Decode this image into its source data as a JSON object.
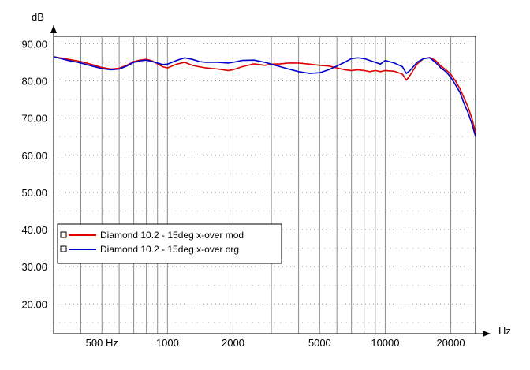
{
  "chart_data": {
    "type": "line",
    "title": "",
    "xlabel": "Hz",
    "ylabel": "dB",
    "x_scale": "log",
    "xlim": [
      300,
      26000
    ],
    "ylim": [
      12,
      92
    ],
    "x_ticks": [
      {
        "value": 500,
        "label": "500 Hz"
      },
      {
        "value": 1000,
        "label": "1000"
      },
      {
        "value": 2000,
        "label": "2000"
      },
      {
        "value": 5000,
        "label": "5000"
      },
      {
        "value": 10000,
        "label": "10000"
      },
      {
        "value": 20000,
        "label": "20000"
      }
    ],
    "y_ticks": [
      {
        "value": 90,
        "label": "90.00"
      },
      {
        "value": 80,
        "label": "80.00"
      },
      {
        "value": 70,
        "label": "70.00"
      },
      {
        "value": 60,
        "label": "60.00"
      },
      {
        "value": 50,
        "label": "50.00"
      },
      {
        "value": 40,
        "label": "40.00"
      },
      {
        "value": 30,
        "label": "30.00"
      },
      {
        "value": 20,
        "label": "20.00"
      }
    ],
    "grid": true,
    "legend_position": "bottom-left",
    "series": [
      {
        "name": "Diamond 10.2 - 15deg x-over mod",
        "color": "#dd0000",
        "x": [
          300,
          350,
          400,
          450,
          500,
          550,
          600,
          650,
          700,
          750,
          800,
          850,
          900,
          950,
          1000,
          1100,
          1200,
          1300,
          1400,
          1500,
          1700,
          1900,
          2000,
          2200,
          2500,
          2800,
          3000,
          3300,
          3600,
          4000,
          4500,
          5000,
          5500,
          6000,
          6500,
          7000,
          7500,
          8000,
          8500,
          9000,
          9500,
          10000,
          11000,
          12000,
          12500,
          13000,
          14000,
          15000,
          16000,
          17000,
          18000,
          19000,
          20000,
          21000,
          22000,
          23000,
          24000,
          25000,
          26000
        ],
        "y": [
          86.5,
          85.8,
          85.2,
          84.4,
          83.6,
          83.2,
          83.4,
          84.2,
          85.2,
          85.6,
          85.8,
          85.4,
          84.6,
          83.8,
          83.5,
          84.5,
          85.0,
          84.2,
          83.8,
          83.5,
          83.2,
          82.8,
          83.0,
          83.8,
          84.6,
          84.2,
          84.5,
          84.6,
          84.8,
          84.8,
          84.5,
          84.2,
          84.0,
          83.5,
          83.0,
          82.8,
          83.0,
          82.8,
          82.5,
          82.8,
          82.5,
          82.8,
          82.6,
          81.8,
          80.2,
          81.5,
          84.5,
          86.0,
          86.3,
          85.5,
          84.0,
          83.0,
          81.8,
          80.0,
          78.0,
          75.5,
          73.0,
          70.0,
          66.0
        ]
      },
      {
        "name": "Diamond 10.2 - 15deg x-over org",
        "color": "#0000cc",
        "x": [
          300,
          350,
          400,
          450,
          500,
          550,
          600,
          650,
          700,
          750,
          800,
          850,
          900,
          950,
          1000,
          1100,
          1200,
          1300,
          1400,
          1500,
          1700,
          1900,
          2000,
          2200,
          2500,
          2800,
          3000,
          3300,
          3600,
          4000,
          4500,
          5000,
          5500,
          6000,
          6500,
          7000,
          7500,
          8000,
          8500,
          9000,
          9500,
          10000,
          11000,
          12000,
          12500,
          13000,
          14000,
          15000,
          16000,
          17000,
          18000,
          19000,
          20000,
          21000,
          22000,
          23000,
          24000,
          25000,
          26000
        ],
        "y": [
          86.5,
          85.5,
          84.8,
          84.0,
          83.3,
          83.0,
          83.2,
          84.0,
          85.0,
          85.4,
          85.6,
          85.2,
          84.8,
          84.4,
          84.5,
          85.5,
          86.2,
          85.8,
          85.2,
          85.0,
          85.0,
          84.8,
          85.0,
          85.5,
          85.6,
          85.0,
          84.5,
          83.8,
          83.2,
          82.5,
          82.0,
          82.2,
          83.0,
          84.0,
          85.0,
          86.0,
          86.2,
          86.0,
          85.5,
          85.0,
          84.5,
          85.5,
          84.8,
          83.8,
          82.0,
          82.8,
          85.0,
          86.0,
          86.2,
          85.0,
          83.5,
          82.5,
          81.0,
          79.0,
          77.0,
          74.0,
          71.5,
          68.5,
          65.0
        ]
      }
    ]
  }
}
